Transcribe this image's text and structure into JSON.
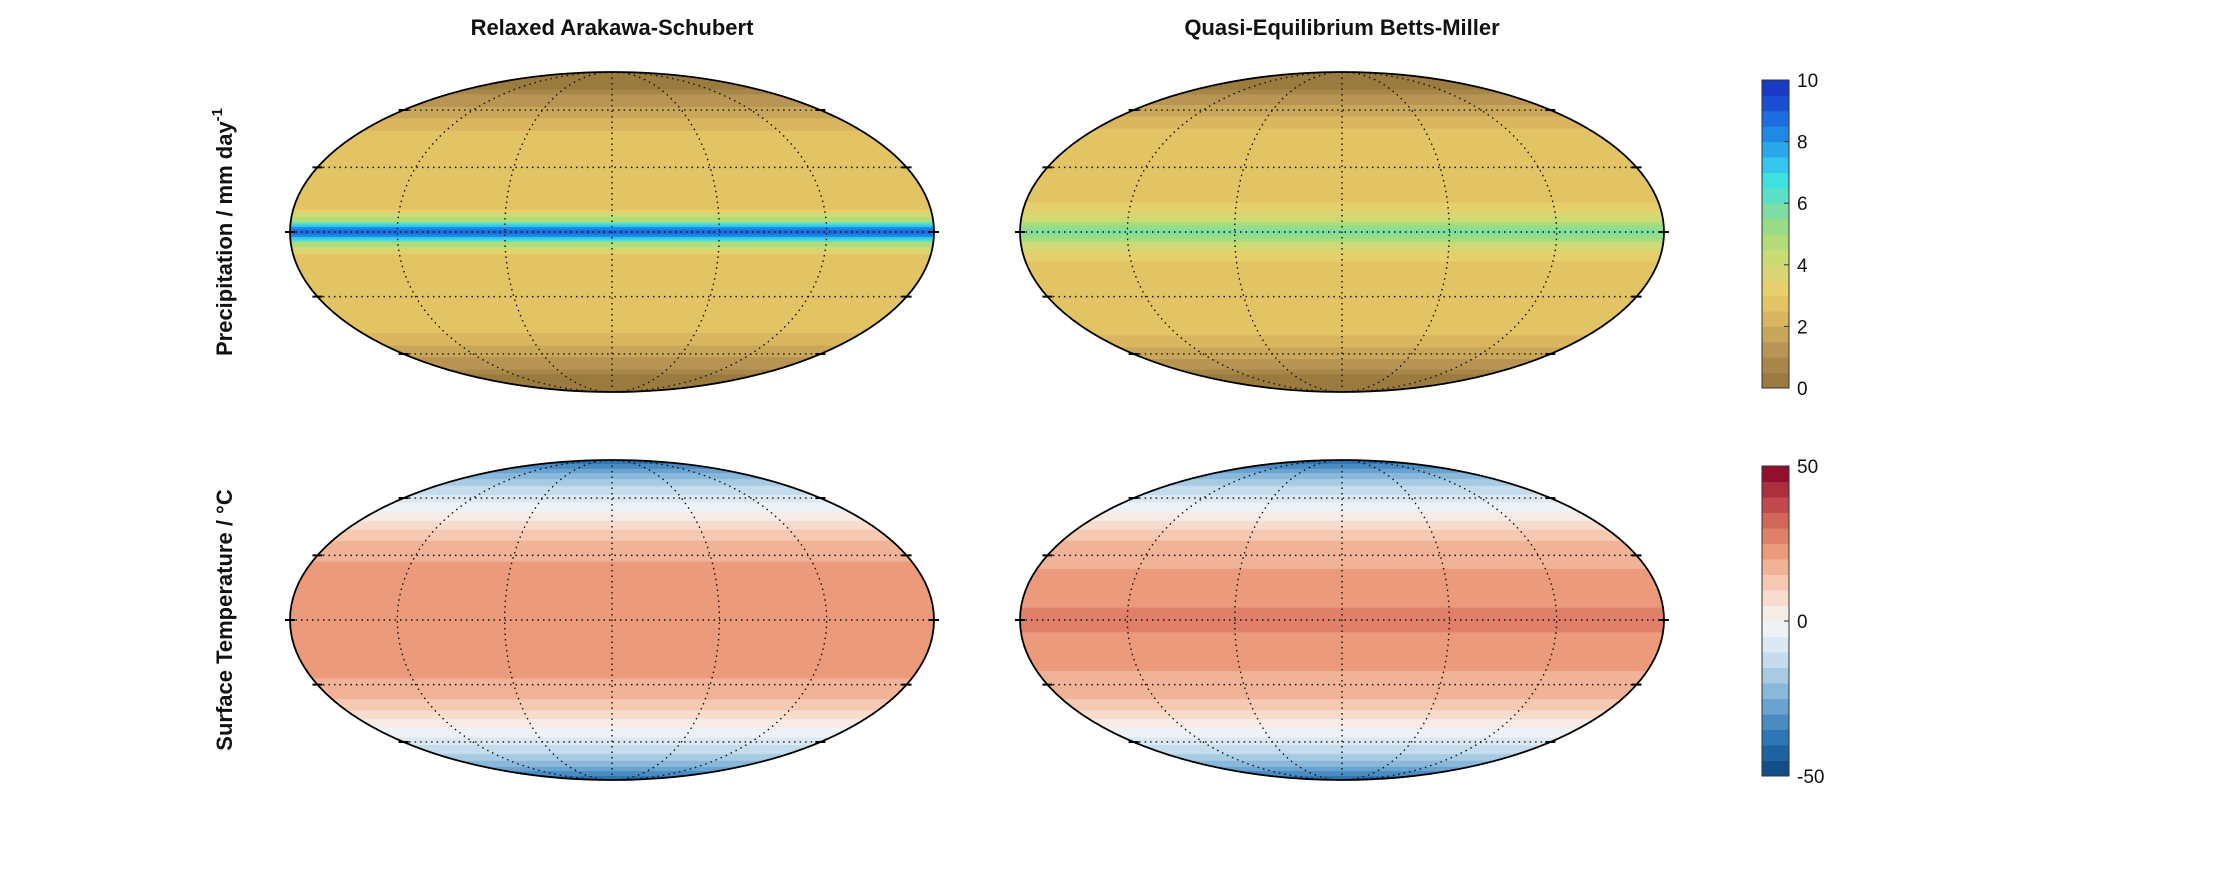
{
  "figure": {
    "column_titles": [
      "Relaxed Arakawa-Schubert",
      "Quasi-Equilibrium Betts-Miller"
    ],
    "row_labels": [
      {
        "text": "Precipitation / mm day",
        "superscript": "-1"
      },
      {
        "text": "Surface Temperature / °C",
        "superscript": ""
      }
    ],
    "projection": "Mollweide",
    "graticule": {
      "style": "dotted",
      "latitudes_deg": [
        -60,
        -30,
        0,
        30,
        60
      ],
      "longitudes_deg": [
        -120,
        -60,
        0,
        60,
        120
      ]
    }
  },
  "colorbars": {
    "precipitation": {
      "tick_labels": [
        "10",
        "8",
        "6",
        "4",
        "2",
        "0"
      ],
      "range": [
        0,
        10
      ],
      "colors": [
        "#9b7b3f",
        "#a8874a",
        "#b89554",
        "#c9a75a",
        "#d9b65f",
        "#e3c464",
        "#e6cf6c",
        "#d8d672",
        "#c9db74",
        "#b2db7a",
        "#98dc88",
        "#7fdda3",
        "#5ae0c8",
        "#3ee0e0",
        "#33c6ee",
        "#2aa8ec",
        "#1f8ae6",
        "#1b6de0",
        "#1a4fd4",
        "#1a3ac8"
      ]
    },
    "temperature": {
      "tick_labels": [
        "50",
        "0",
        "-50"
      ],
      "range": [
        -50,
        50
      ],
      "colors": [
        "#124f8a",
        "#1f62a0",
        "#2e76b4",
        "#4a8cc2",
        "#6aa3cf",
        "#8ab8da",
        "#a8cbe4",
        "#c4dcec",
        "#dce9f2",
        "#eef2f6",
        "#f7ebe6",
        "#f8dccd",
        "#f7c9b3",
        "#f1b398",
        "#eb9b7c",
        "#e0806a",
        "#d2665a",
        "#c24a4c",
        "#ad2e3c",
        "#940f2c"
      ]
    }
  },
  "maps": [
    {
      "id": "ras-precip",
      "field": "precipitation",
      "units": "mm day-1",
      "zonal_profile": [
        {
          "lat": 90,
          "value": 0.2
        },
        {
          "lat": 75,
          "value": 0.3
        },
        {
          "lat": 68,
          "value": 1.2
        },
        {
          "lat": 60,
          "value": 1.6
        },
        {
          "lat": 52,
          "value": 2.3
        },
        {
          "lat": 40,
          "value": 3.0
        },
        {
          "lat": 28,
          "value": 2.7
        },
        {
          "lat": 18,
          "value": 2.5
        },
        {
          "lat": 10,
          "value": 3.0
        },
        {
          "lat": 5,
          "value": 5.0
        },
        {
          "lat": 2,
          "value": 8.0
        },
        {
          "lat": 0,
          "value": 9.0
        },
        {
          "lat": -2,
          "value": 8.0
        },
        {
          "lat": -5,
          "value": 5.0
        },
        {
          "lat": -10,
          "value": 3.0
        },
        {
          "lat": -18,
          "value": 2.5
        },
        {
          "lat": -28,
          "value": 2.7
        },
        {
          "lat": -40,
          "value": 3.0
        },
        {
          "lat": -52,
          "value": 2.3
        },
        {
          "lat": -60,
          "value": 1.6
        },
        {
          "lat": -68,
          "value": 1.2
        },
        {
          "lat": -75,
          "value": 0.3
        },
        {
          "lat": -90,
          "value": 0.2
        }
      ]
    },
    {
      "id": "qebm-precip",
      "field": "precipitation",
      "units": "mm day-1",
      "zonal_profile": [
        {
          "lat": 90,
          "value": 0.2
        },
        {
          "lat": 75,
          "value": 0.3
        },
        {
          "lat": 68,
          "value": 1.2
        },
        {
          "lat": 60,
          "value": 1.7
        },
        {
          "lat": 52,
          "value": 2.4
        },
        {
          "lat": 40,
          "value": 3.0
        },
        {
          "lat": 28,
          "value": 2.5
        },
        {
          "lat": 18,
          "value": 2.6
        },
        {
          "lat": 10,
          "value": 3.4
        },
        {
          "lat": 5,
          "value": 4.4
        },
        {
          "lat": 2,
          "value": 5.4
        },
        {
          "lat": 0,
          "value": 6.0
        },
        {
          "lat": -2,
          "value": 5.4
        },
        {
          "lat": -5,
          "value": 4.4
        },
        {
          "lat": -10,
          "value": 3.4
        },
        {
          "lat": -18,
          "value": 2.6
        },
        {
          "lat": -28,
          "value": 2.5
        },
        {
          "lat": -40,
          "value": 3.0
        },
        {
          "lat": -52,
          "value": 2.4
        },
        {
          "lat": -60,
          "value": 1.7
        },
        {
          "lat": -68,
          "value": 1.2
        },
        {
          "lat": -75,
          "value": 0.3
        },
        {
          "lat": -90,
          "value": 0.2
        }
      ]
    },
    {
      "id": "ras-temp",
      "field": "temperature",
      "units": "°C",
      "zonal_profile": [
        {
          "lat": 90,
          "value": -42
        },
        {
          "lat": 80,
          "value": -30
        },
        {
          "lat": 70,
          "value": -17
        },
        {
          "lat": 60,
          "value": -8
        },
        {
          "lat": 50,
          "value": 2
        },
        {
          "lat": 42,
          "value": 11
        },
        {
          "lat": 35,
          "value": 17
        },
        {
          "lat": 25,
          "value": 21
        },
        {
          "lat": 0,
          "value": 22
        },
        {
          "lat": -25,
          "value": 21
        },
        {
          "lat": -35,
          "value": 17
        },
        {
          "lat": -42,
          "value": 11
        },
        {
          "lat": -50,
          "value": 2
        },
        {
          "lat": -60,
          "value": -8
        },
        {
          "lat": -70,
          "value": -17
        },
        {
          "lat": -80,
          "value": -30
        },
        {
          "lat": -90,
          "value": -42
        }
      ]
    },
    {
      "id": "qebm-temp",
      "field": "temperature",
      "units": "°C",
      "zonal_profile": [
        {
          "lat": 90,
          "value": -42
        },
        {
          "lat": 80,
          "value": -30
        },
        {
          "lat": 70,
          "value": -17
        },
        {
          "lat": 60,
          "value": -8
        },
        {
          "lat": 50,
          "value": 2
        },
        {
          "lat": 42,
          "value": 11
        },
        {
          "lat": 35,
          "value": 17
        },
        {
          "lat": 20,
          "value": 21
        },
        {
          "lat": 8,
          "value": 24
        },
        {
          "lat": 0,
          "value": 27
        },
        {
          "lat": -8,
          "value": 24
        },
        {
          "lat": -20,
          "value": 21
        },
        {
          "lat": -35,
          "value": 17
        },
        {
          "lat": -42,
          "value": 11
        },
        {
          "lat": -50,
          "value": 2
        },
        {
          "lat": -60,
          "value": -8
        },
        {
          "lat": -70,
          "value": -17
        },
        {
          "lat": -80,
          "value": -30
        },
        {
          "lat": -90,
          "value": -42
        }
      ]
    }
  ]
}
